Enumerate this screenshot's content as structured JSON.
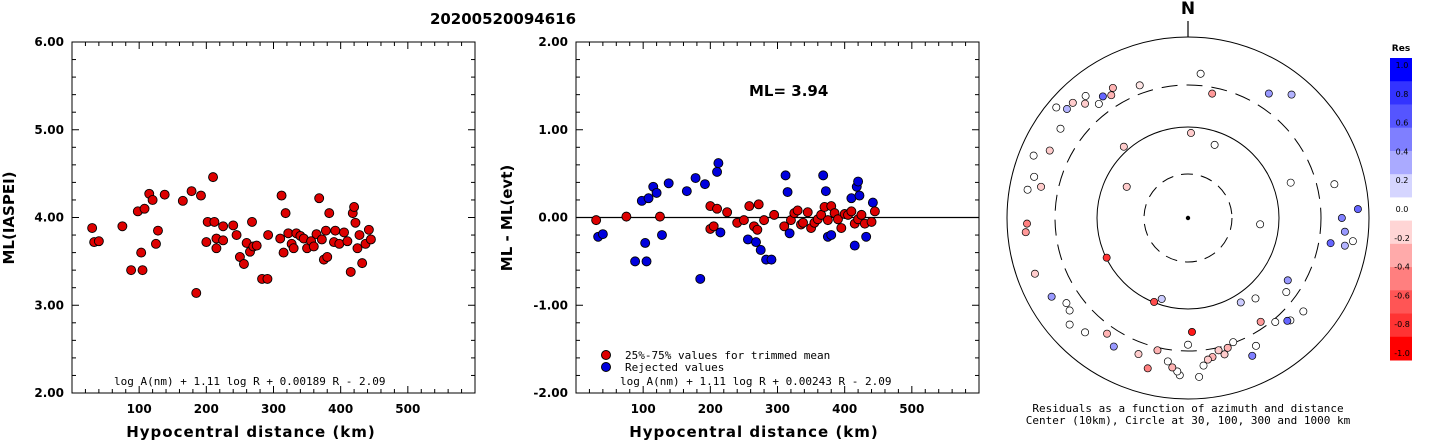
{
  "event_id": "20200520094616",
  "chart_data": [
    {
      "type": "scatter",
      "ylabel": "ML(IASPEI)",
      "xlabel": "Hypocentral distance (km)",
      "xlim": [
        0,
        600
      ],
      "ylim": [
        2.0,
        6.0
      ],
      "xticks": [
        "100",
        "200",
        "300",
        "400",
        "500"
      ],
      "yticks": [
        "2.00",
        "3.00",
        "4.00",
        "5.00",
        "6.00"
      ],
      "formula": "log A(nm) + 1.11 log R + 0.00189 R - 2.09",
      "series": [
        {
          "color": "#dd0000",
          "points": [
            [
              30,
              3.88
            ],
            [
              33,
              3.72
            ],
            [
              40,
              3.73
            ],
            [
              75,
              3.9
            ],
            [
              88,
              3.4
            ],
            [
              98,
              4.07
            ],
            [
              103,
              3.6
            ],
            [
              105,
              3.4
            ],
            [
              108,
              4.1
            ],
            [
              115,
              4.27
            ],
            [
              120,
              4.2
            ],
            [
              125,
              3.7
            ],
            [
              128,
              3.85
            ],
            [
              138,
              4.26
            ],
            [
              165,
              4.19
            ],
            [
              178,
              4.3
            ],
            [
              185,
              3.14
            ],
            [
              192,
              4.25
            ],
            [
              200,
              3.72
            ],
            [
              202,
              3.95
            ],
            [
              210,
              4.46
            ],
            [
              212,
              3.95
            ],
            [
              215,
              3.76
            ],
            [
              215,
              3.65
            ],
            [
              225,
              3.9
            ],
            [
              225,
              3.74
            ],
            [
              240,
              3.91
            ],
            [
              245,
              3.8
            ],
            [
              250,
              3.55
            ],
            [
              256,
              3.47
            ],
            [
              260,
              3.71
            ],
            [
              265,
              3.61
            ],
            [
              268,
              3.95
            ],
            [
              270,
              3.67
            ],
            [
              275,
              3.68
            ],
            [
              283,
              3.3
            ],
            [
              291,
              3.3
            ],
            [
              292,
              3.8
            ],
            [
              310,
              3.76
            ],
            [
              312,
              4.25
            ],
            [
              315,
              3.6
            ],
            [
              318,
              4.05
            ],
            [
              322,
              3.82
            ],
            [
              327,
              3.7
            ],
            [
              330,
              3.65
            ],
            [
              334,
              3.82
            ],
            [
              340,
              3.79
            ],
            [
              345,
              3.76
            ],
            [
              350,
              3.65
            ],
            [
              356,
              3.73
            ],
            [
              360,
              3.67
            ],
            [
              364,
              3.81
            ],
            [
              368,
              4.22
            ],
            [
              372,
              3.75
            ],
            [
              375,
              3.52
            ],
            [
              378,
              3.85
            ],
            [
              380,
              3.55
            ],
            [
              383,
              4.05
            ],
            [
              390,
              3.72
            ],
            [
              392,
              3.85
            ],
            [
              398,
              3.7
            ],
            [
              405,
              3.83
            ],
            [
              410,
              3.73
            ],
            [
              415,
              3.38
            ],
            [
              418,
              4.05
            ],
            [
              420,
              4.12
            ],
            [
              422,
              3.94
            ],
            [
              425,
              3.65
            ],
            [
              428,
              3.8
            ],
            [
              432,
              3.48
            ],
            [
              437,
              3.7
            ],
            [
              442,
              3.86
            ],
            [
              445,
              3.75
            ]
          ]
        }
      ]
    },
    {
      "type": "scatter",
      "ylabel": "ML - ML(evt)",
      "xlabel": "Hypocentral distance (km)",
      "xlim": [
        0,
        600
      ],
      "ylim": [
        -2.0,
        2.0
      ],
      "xticks": [
        "100",
        "200",
        "300",
        "400",
        "500"
      ],
      "yticks": [
        "-2.00",
        "-1.00",
        "0.00",
        "1.00",
        "2.00"
      ],
      "zero_line": 0,
      "annotation": "ML= 3.94",
      "formula": "log A(nm) + 1.11 log R + 0.00243 R - 2.09",
      "legend": [
        {
          "label": "25%-75% values for trimmed mean",
          "color": "#dd0000"
        },
        {
          "label": "Rejected values",
          "color": "#0000dd"
        }
      ],
      "series": [
        {
          "name": "25%-75% values for trimmed mean",
          "color": "#dd0000",
          "points": [
            [
              30,
              -0.03
            ],
            [
              75,
              0.01
            ],
            [
              125,
              0.01
            ],
            [
              200,
              0.13
            ],
            [
              200,
              -0.13
            ],
            [
              205,
              -0.1
            ],
            [
              210,
              0.1
            ],
            [
              225,
              0.06
            ],
            [
              240,
              -0.06
            ],
            [
              250,
              -0.03
            ],
            [
              258,
              0.13
            ],
            [
              265,
              -0.1
            ],
            [
              270,
              -0.14
            ],
            [
              272,
              0.15
            ],
            [
              280,
              -0.03
            ],
            [
              295,
              0.03
            ],
            [
              310,
              -0.1
            ],
            [
              320,
              -0.03
            ],
            [
              325,
              0.05
            ],
            [
              330,
              0.08
            ],
            [
              335,
              -0.08
            ],
            [
              338,
              -0.06
            ],
            [
              345,
              0.06
            ],
            [
              350,
              -0.12
            ],
            [
              355,
              -0.06
            ],
            [
              360,
              -0.02
            ],
            [
              365,
              0.03
            ],
            [
              370,
              0.12
            ],
            [
              375,
              -0.03
            ],
            [
              380,
              0.13
            ],
            [
              385,
              0.05
            ],
            [
              390,
              -0.02
            ],
            [
              395,
              -0.12
            ],
            [
              400,
              0.04
            ],
            [
              405,
              0.03
            ],
            [
              410,
              0.07
            ],
            [
              415,
              -0.07
            ],
            [
              420,
              -0.02
            ],
            [
              425,
              0.03
            ],
            [
              430,
              -0.07
            ],
            [
              440,
              -0.05
            ],
            [
              445,
              0.07
            ]
          ]
        },
        {
          "name": "Rejected values",
          "color": "#0000dd",
          "points": [
            [
              33,
              -0.22
            ],
            [
              40,
              -0.19
            ],
            [
              88,
              -0.5
            ],
            [
              98,
              0.19
            ],
            [
              103,
              -0.29
            ],
            [
              105,
              -0.5
            ],
            [
              108,
              0.22
            ],
            [
              115,
              0.35
            ],
            [
              120,
              0.28
            ],
            [
              128,
              -0.2
            ],
            [
              138,
              0.39
            ],
            [
              165,
              0.3
            ],
            [
              178,
              0.45
            ],
            [
              185,
              -0.7
            ],
            [
              192,
              0.38
            ],
            [
              210,
              0.52
            ],
            [
              212,
              0.62
            ],
            [
              215,
              -0.17
            ],
            [
              256,
              -0.25
            ],
            [
              268,
              -0.28
            ],
            [
              275,
              -0.37
            ],
            [
              283,
              -0.48
            ],
            [
              291,
              -0.48
            ],
            [
              312,
              0.48
            ],
            [
              315,
              0.29
            ],
            [
              318,
              -0.18
            ],
            [
              368,
              0.48
            ],
            [
              372,
              0.3
            ],
            [
              375,
              -0.22
            ],
            [
              380,
              -0.2
            ],
            [
              410,
              0.22
            ],
            [
              415,
              -0.32
            ],
            [
              418,
              0.35
            ],
            [
              420,
              0.41
            ],
            [
              422,
              0.25
            ],
            [
              432,
              -0.22
            ],
            [
              442,
              0.17
            ]
          ]
        }
      ]
    },
    {
      "type": "polar-scatter",
      "north_label": "N",
      "caption": [
        "Residuals as a function of azimuth and distance",
        "Center (10km), Circle at 30, 100, 300 and 1000 km"
      ],
      "colorbar": {
        "title": "Res",
        "ticks": [
          "1.0",
          "0.8",
          "0.6",
          "0.4",
          "0.2",
          "0.0",
          "-0.2",
          "-0.4",
          "-0.6",
          "-0.8",
          "-1.0"
        ],
        "colors": [
          "#0000ff",
          "#3333ff",
          "#5555ff",
          "#7f7fff",
          "#aaaaff",
          "#d5d5ff",
          "#ffffff",
          "#ffd5d5",
          "#ffaaaa",
          "#ff7f7f",
          "#ff5555",
          "#ff3333",
          "#ff0000"
        ]
      },
      "stations": [
        {
          "az": 2,
          "r": 0.47,
          "res": -0.2
        },
        {
          "az": 5,
          "r": 0.8,
          "res": 0.0
        },
        {
          "az": 11,
          "r": 0.7,
          "res": -0.4
        },
        {
          "az": 33,
          "r": 0.82,
          "res": 0.4
        },
        {
          "az": 40,
          "r": 0.89,
          "res": 0.3
        },
        {
          "az": 71,
          "r": 0.6,
          "res": 0.0
        },
        {
          "az": 77,
          "r": 0.83,
          "res": 0.0
        },
        {
          "az": 87,
          "r": 0.94,
          "res": 0.6
        },
        {
          "az": 90,
          "r": 0.85,
          "res": 0.5
        },
        {
          "az": 95,
          "r": 0.87,
          "res": 0.4
        },
        {
          "az": 98,
          "r": 0.92,
          "res": 0.0
        },
        {
          "az": 100,
          "r": 0.8,
          "res": 0.6
        },
        {
          "az": 100,
          "r": 0.88,
          "res": 0.3
        },
        {
          "az": 122,
          "r": 0.65,
          "res": 0.4
        },
        {
          "az": 127,
          "r": 0.68,
          "res": 0.0
        },
        {
          "az": 129,
          "r": 0.82,
          "res": 0.0
        },
        {
          "az": 135,
          "r": 0.8,
          "res": 0.0
        },
        {
          "az": 136,
          "r": 0.79,
          "res": 0.6
        },
        {
          "az": 140,
          "r": 0.58,
          "res": 0.0
        },
        {
          "az": 145,
          "r": 0.7,
          "res": -0.4
        },
        {
          "az": 148,
          "r": 0.55,
          "res": 0.2
        },
        {
          "az": 152,
          "r": 0.8,
          "res": 0.0
        },
        {
          "az": 155,
          "r": 0.84,
          "res": 0.5
        },
        {
          "az": 160,
          "r": 0.73,
          "res": 0.0
        },
        {
          "az": 163,
          "r": 0.75,
          "res": -0.3
        },
        {
          "az": 165,
          "r": 0.78,
          "res": -0.2
        },
        {
          "az": 167,
          "r": 0.75,
          "res": -0.2
        },
        {
          "az": 170,
          "r": 0.78,
          "res": -0.3
        },
        {
          "az": 172,
          "r": 0.79,
          "res": -0.2
        },
        {
          "az": 174,
          "r": 0.82,
          "res": 0.0
        },
        {
          "az": 176,
          "r": 0.88,
          "res": 0.0
        },
        {
          "az": 178,
          "r": 0.63,
          "res": -0.9
        },
        {
          "az": 180,
          "r": 0.7,
          "res": 0.0
        },
        {
          "az": 183,
          "r": 0.87,
          "res": 0.0
        },
        {
          "az": 184,
          "r": 0.85,
          "res": 0.0
        },
        {
          "az": 186,
          "r": 0.83,
          "res": -0.3
        },
        {
          "az": 188,
          "r": 0.8,
          "res": 0.0
        },
        {
          "az": 193,
          "r": 0.75,
          "res": -0.3
        },
        {
          "az": 195,
          "r": 0.86,
          "res": -0.5
        },
        {
          "az": 200,
          "r": 0.8,
          "res": -0.2
        },
        {
          "az": 198,
          "r": 0.47,
          "res": 0.2
        },
        {
          "az": 202,
          "r": 0.5,
          "res": -0.7
        },
        {
          "az": 210,
          "r": 0.82,
          "res": 0.4
        },
        {
          "az": 215,
          "r": 0.78,
          "res": -0.3
        },
        {
          "az": 222,
          "r": 0.85,
          "res": 0.0
        },
        {
          "az": 228,
          "r": 0.88,
          "res": 0.0
        },
        {
          "az": 232,
          "r": 0.83,
          "res": 0.0
        },
        {
          "az": 235,
          "r": 0.82,
          "res": 0.0
        },
        {
          "az": 240,
          "r": 0.87,
          "res": 0.4
        },
        {
          "az": 244,
          "r": 0.5,
          "res": -0.8
        },
        {
          "az": 250,
          "r": 0.9,
          "res": -0.2
        },
        {
          "az": 265,
          "r": 0.9,
          "res": -0.4
        },
        {
          "az": 268,
          "r": 0.89,
          "res": -0.5
        },
        {
          "az": 280,
          "r": 0.9,
          "res": 0.0
        },
        {
          "az": 282,
          "r": 0.83,
          "res": -0.2
        },
        {
          "az": 285,
          "r": 0.88,
          "res": 0.0
        },
        {
          "az": 292,
          "r": 0.92,
          "res": 0.0
        },
        {
          "az": 296,
          "r": 0.85,
          "res": -0.2
        },
        {
          "az": 305,
          "r": 0.86,
          "res": 0.0
        },
        {
          "az": 310,
          "r": 0.95,
          "res": 0.0
        },
        {
          "az": 312,
          "r": 0.9,
          "res": 0.3
        },
        {
          "az": 315,
          "r": 0.9,
          "res": -0.2
        },
        {
          "az": 318,
          "r": 0.85,
          "res": -0.2
        },
        {
          "az": 320,
          "r": 0.88,
          "res": 0.0
        },
        {
          "az": 322,
          "r": 0.8,
          "res": 0.0
        },
        {
          "az": 325,
          "r": 0.82,
          "res": 0.6
        },
        {
          "az": 328,
          "r": 0.8,
          "res": -0.3
        },
        {
          "az": 330,
          "r": 0.83,
          "res": -0.3
        },
        {
          "az": 340,
          "r": 0.78,
          "res": -0.1
        },
        {
          "az": 318,
          "r": 0.53,
          "res": -0.2
        },
        {
          "az": 297,
          "r": 0.38,
          "res": -0.2
        },
        {
          "az": 95,
          "r": 0.4,
          "res": 0.0
        },
        {
          "az": 20,
          "r": 0.43,
          "res": 0.0
        },
        {
          "az": 140,
          "r": 0.75,
          "res": 0.0
        }
      ]
    }
  ]
}
